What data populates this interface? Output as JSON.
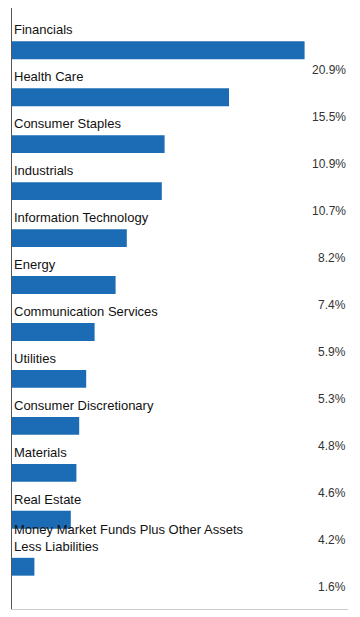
{
  "chart_data": {
    "type": "bar",
    "orientation": "horizontal",
    "categories": [
      "Financials",
      "Health Care",
      "Consumer Staples",
      "Industrials",
      "Information Technology",
      "Energy",
      "Communication Services",
      "Utilities",
      "Consumer Discretionary",
      "Materials",
      "Real Estate",
      "Money Market Funds Plus Other Assets\nLess Liabilities"
    ],
    "values": [
      20.9,
      15.5,
      10.9,
      10.7,
      8.2,
      7.4,
      5.9,
      5.3,
      4.8,
      4.6,
      4.2,
      1.6
    ],
    "value_labels": [
      "20.9%",
      "15.5%",
      "10.9%",
      "10.7%",
      "8.2%",
      "7.4%",
      "5.9%",
      "5.3%",
      "4.8%",
      "4.6%",
      "4.2%",
      "1.6%"
    ],
    "color": "#1b6cb5",
    "xlim": [
      0,
      24.0
    ],
    "xticks": [],
    "data_labels": true,
    "tick_labels": false,
    "grid": false
  }
}
